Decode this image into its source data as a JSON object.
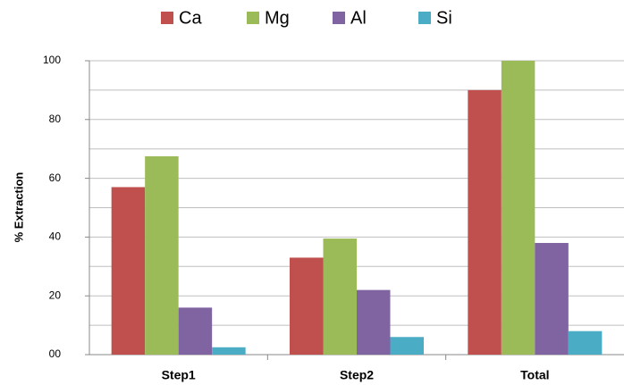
{
  "chart_data": {
    "type": "bar",
    "y_label": "% Extraction",
    "categories": [
      "Step1",
      "Step2",
      "Total"
    ],
    "series": [
      {
        "name": "Ca",
        "color": "#c0504d",
        "values": [
          57,
          33,
          90
        ]
      },
      {
        "name": "Mg",
        "color": "#9bbb59",
        "values": [
          67.5,
          39.5,
          100
        ]
      },
      {
        "name": "Al",
        "color": "#8064a2",
        "values": [
          16,
          22,
          38
        ]
      },
      {
        "name": "Si",
        "color": "#4bacc6",
        "values": [
          2.5,
          6,
          8
        ]
      }
    ],
    "ylim": [
      0,
      100
    ],
    "yticks": [
      {
        "value": 0,
        "label": "00"
      },
      20,
      40,
      60,
      80,
      100
    ],
    "yminor_grid": [
      10,
      30,
      50,
      70,
      90
    ],
    "grid": true,
    "legend": "top"
  }
}
